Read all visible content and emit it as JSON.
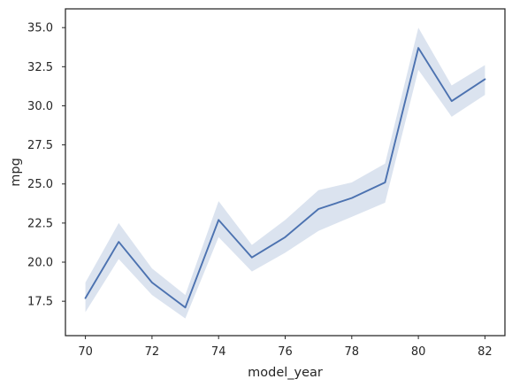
{
  "chart_data": {
    "type": "line",
    "title": "",
    "xlabel": "model_year",
    "ylabel": "mpg",
    "xlim": [
      69.4,
      82.6
    ],
    "ylim": [
      15.3,
      36.2
    ],
    "xticks": [
      70,
      72,
      74,
      76,
      78,
      80,
      82
    ],
    "yticks": [
      17.5,
      20.0,
      22.5,
      25.0,
      27.5,
      30.0,
      32.5,
      35.0
    ],
    "ytick_labels": [
      "17.5",
      "20.0",
      "22.5",
      "25.0",
      "27.5",
      "30.0",
      "32.5",
      "35.0"
    ],
    "grid": false,
    "legend": "none",
    "series": [
      {
        "x": [
          70,
          71,
          72,
          73,
          74,
          75,
          76,
          77,
          78,
          79,
          80,
          81,
          82
        ],
        "y": [
          17.7,
          21.3,
          18.7,
          17.1,
          22.7,
          20.3,
          21.6,
          23.4,
          24.1,
          25.1,
          33.7,
          30.3,
          31.7
        ],
        "ci_lower": [
          16.8,
          20.2,
          17.9,
          16.4,
          21.6,
          19.4,
          20.6,
          22.0,
          22.9,
          23.8,
          32.3,
          29.3,
          30.7
        ],
        "ci_upper": [
          18.7,
          22.5,
          19.6,
          17.9,
          23.9,
          21.1,
          22.7,
          24.6,
          25.1,
          26.3,
          35.0,
          31.3,
          32.6
        ],
        "color": "#4c72b0",
        "band_color": "#4c72b0"
      }
    ]
  }
}
